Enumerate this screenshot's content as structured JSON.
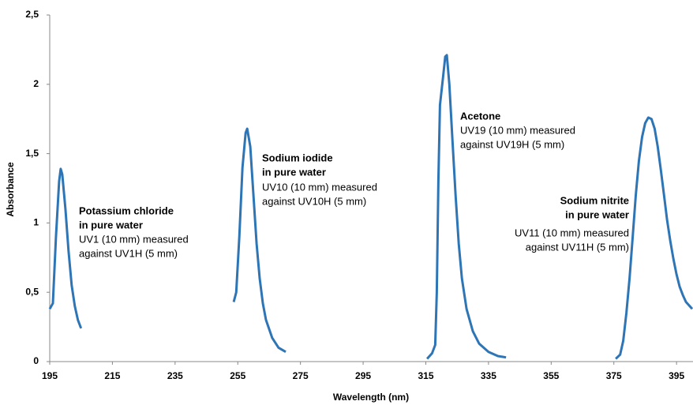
{
  "chart_data": {
    "type": "line",
    "xlabel": "Wavelength (nm)",
    "ylabel": "Absorbance",
    "xlim": [
      195,
      400
    ],
    "ylim": [
      0,
      2.5
    ],
    "xticks": [
      195,
      215,
      235,
      255,
      275,
      295,
      315,
      335,
      355,
      375,
      395
    ],
    "yticks": [
      0,
      {
        "value": 0.5,
        "label": "0,5"
      },
      1,
      {
        "value": 1.5,
        "label": "1,5"
      },
      2,
      {
        "value": 2.5,
        "label": "2,5"
      }
    ],
    "series": [
      {
        "color": "#2e75b6",
        "x": [
          195,
          196,
          197,
          198,
          198.5,
          199,
          200,
          201,
          202,
          203,
          204,
          205
        ],
        "values": [
          0.38,
          0.42,
          0.9,
          1.3,
          1.39,
          1.35,
          1.1,
          0.8,
          0.55,
          0.4,
          0.3,
          0.24
        ]
      },
      {
        "color": "#2e75b6",
        "x": [
          253.7,
          254.5,
          255.5,
          256.5,
          257.5,
          258,
          259,
          260,
          261,
          262,
          263,
          264,
          266,
          268,
          270.3
        ],
        "values": [
          0.43,
          0.5,
          0.9,
          1.4,
          1.65,
          1.68,
          1.55,
          1.2,
          0.85,
          0.6,
          0.42,
          0.3,
          0.17,
          0.1,
          0.07
        ]
      },
      {
        "color": "#2e75b6",
        "x": [
          315.4,
          317,
          318,
          318.5,
          319,
          319.5,
          320.5,
          321.2,
          321.7,
          322.5,
          323.5,
          324.5,
          325.5,
          326.5,
          328,
          330,
          332,
          335,
          338,
          340.6
        ],
        "values": [
          0.02,
          0.06,
          0.12,
          0.5,
          1.3,
          1.85,
          2.05,
          2.2,
          2.21,
          2.0,
          1.6,
          1.2,
          0.85,
          0.6,
          0.38,
          0.22,
          0.13,
          0.07,
          0.04,
          0.03
        ]
      },
      {
        "color": "#2e75b6",
        "x": [
          375.6,
          377,
          378,
          379,
          380,
          381,
          382,
          383,
          384,
          385,
          386,
          387,
          388,
          389,
          390,
          391,
          392,
          393,
          394,
          395,
          396,
          397,
          398,
          400
        ],
        "values": [
          0.02,
          0.05,
          0.15,
          0.35,
          0.6,
          0.9,
          1.2,
          1.45,
          1.62,
          1.72,
          1.76,
          1.75,
          1.68,
          1.55,
          1.38,
          1.2,
          1.02,
          0.87,
          0.74,
          0.63,
          0.54,
          0.48,
          0.43,
          0.38
        ]
      }
    ],
    "annotations": [
      {
        "title": [
          "Potassium chloride",
          "in pure water"
        ],
        "lines": [
          "UV1 (10 mm) measured",
          "against UV1H (5 mm)"
        ]
      },
      {
        "title": [
          "Sodium iodide",
          "in pure water"
        ],
        "lines": [
          "UV10 (10 mm) measured",
          "against UV10H (5 mm)"
        ]
      },
      {
        "title": [
          "Acetone"
        ],
        "lines": [
          "UV19 (10 mm) measured",
          "against UV19H (5 mm)"
        ]
      },
      {
        "title": [
          "Sodium nitrite",
          "in pure water"
        ],
        "lines": [
          "UV11 (10 mm) measured",
          "against UV11H (5 mm)"
        ]
      }
    ]
  }
}
